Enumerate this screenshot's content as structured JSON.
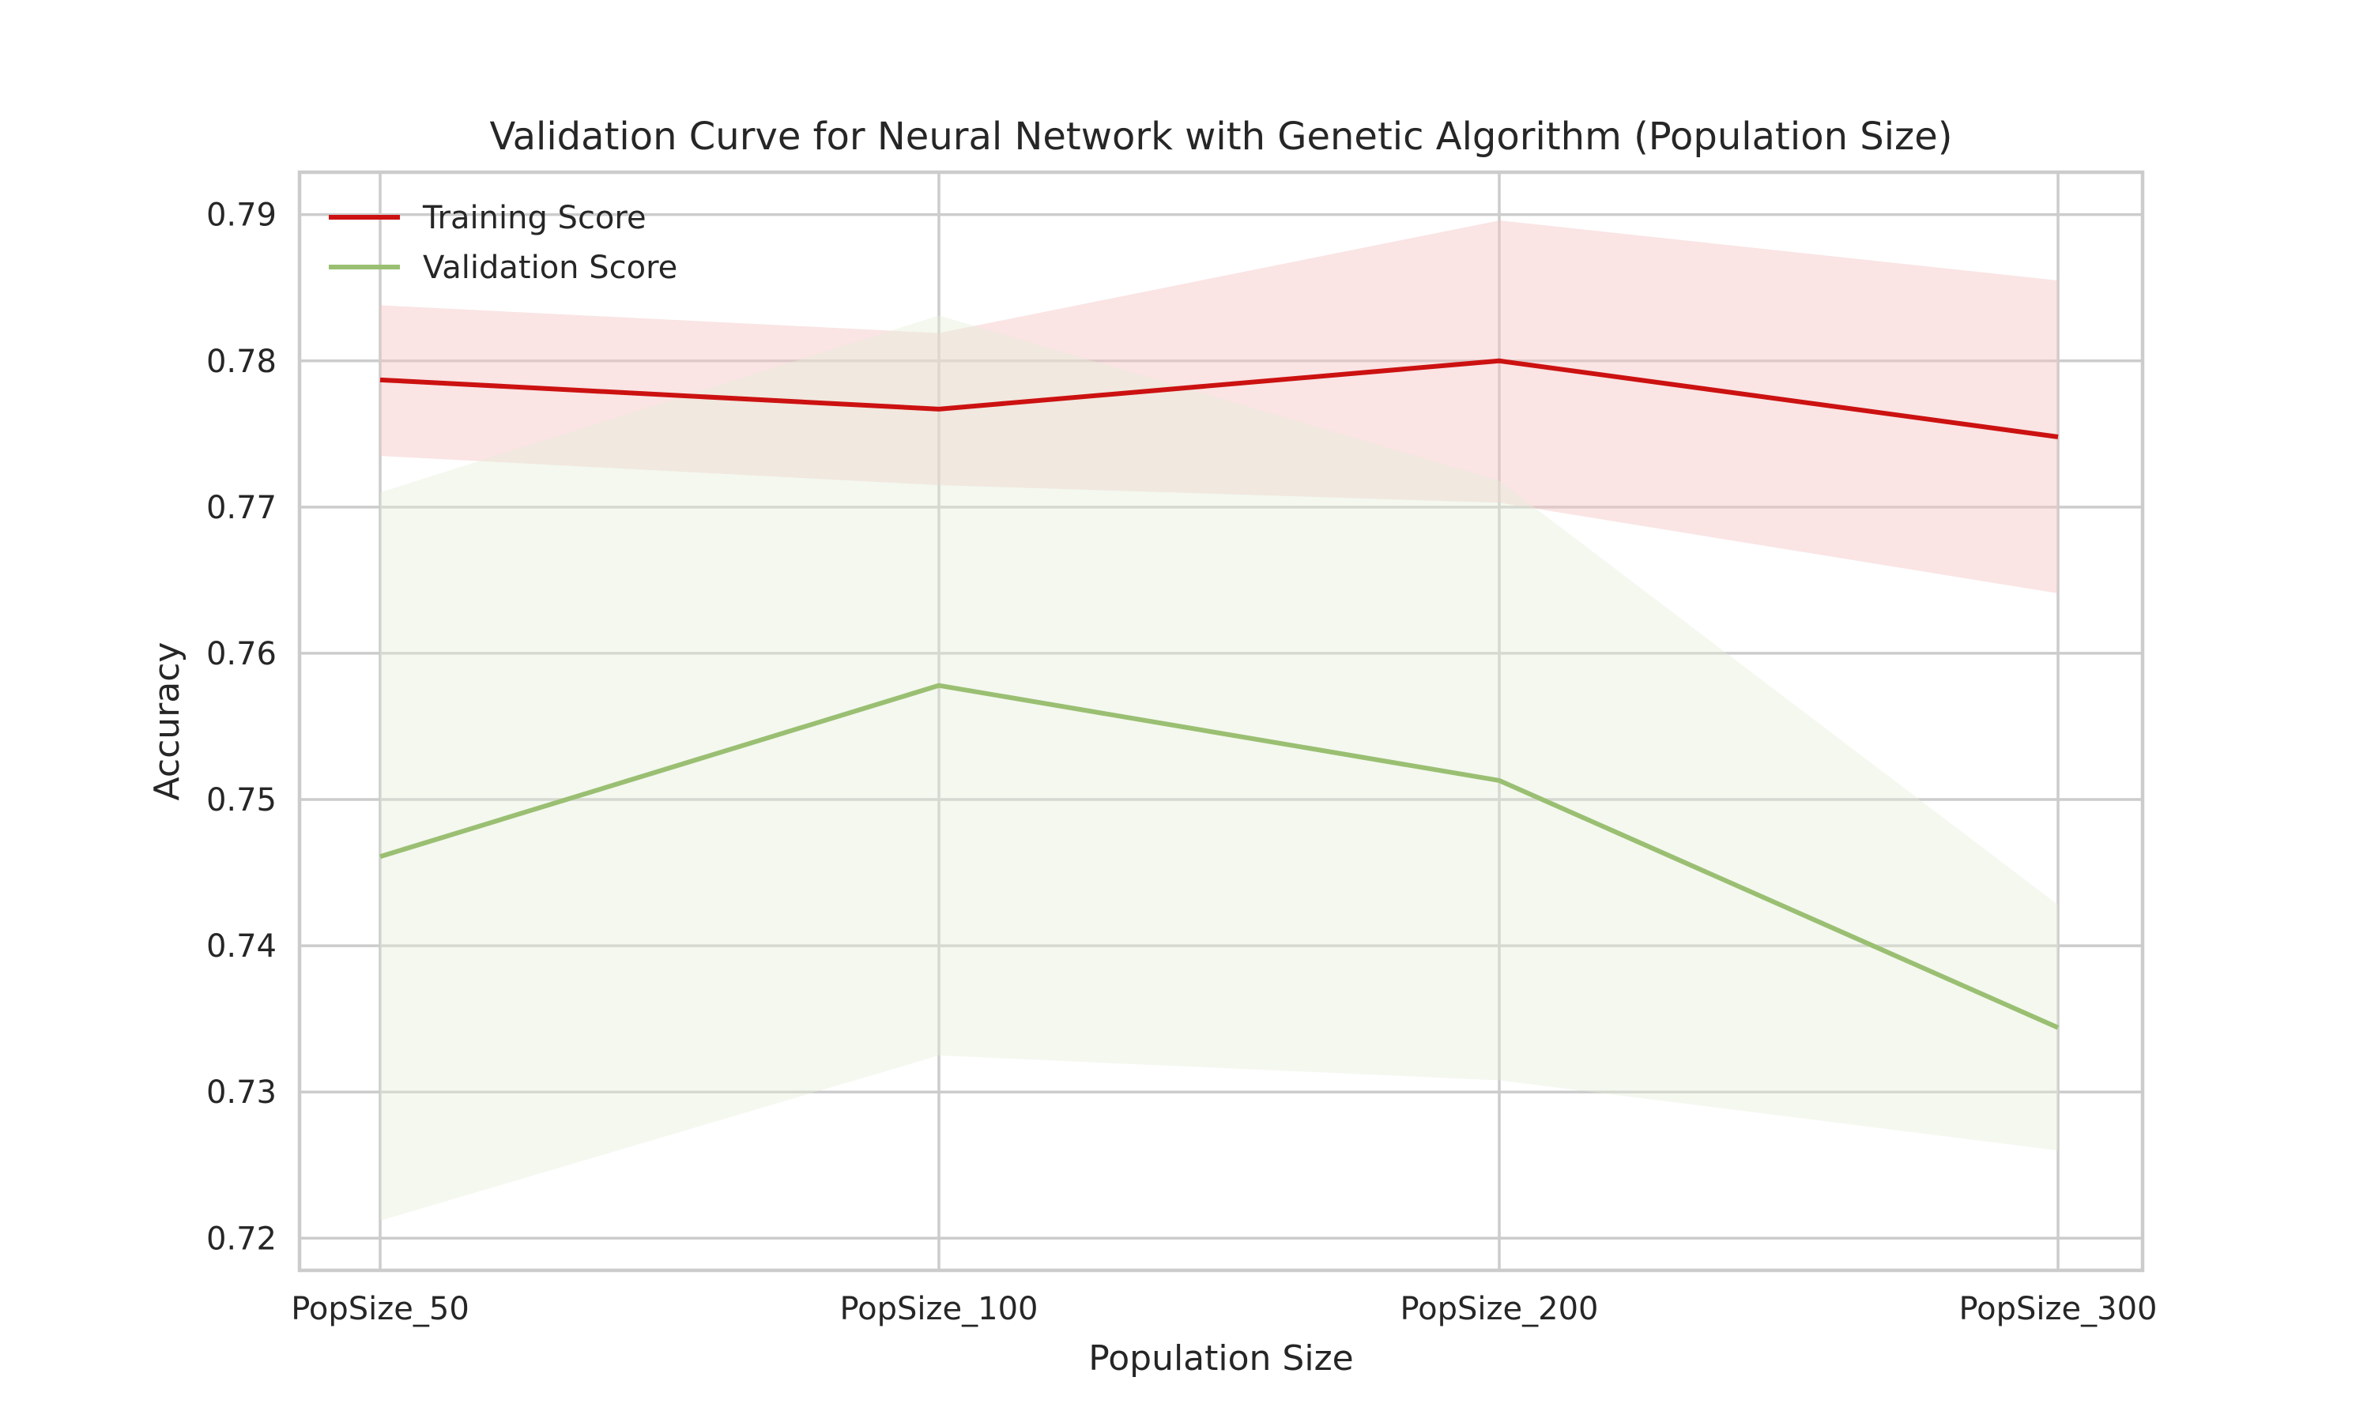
{
  "chart_data": {
    "type": "line",
    "title": "Validation Curve for Neural Network with Genetic Algorithm (Population Size)",
    "xlabel": "Population Size",
    "ylabel": "Accuracy",
    "categories": [
      "PopSize_50",
      "PopSize_100",
      "PopSize_200",
      "PopSize_300"
    ],
    "ylim": [
      0.7178,
      0.7929
    ],
    "yticks": [
      0.72,
      0.73,
      0.74,
      0.75,
      0.76,
      0.77,
      0.78,
      0.79
    ],
    "ytick_labels": [
      "0.72",
      "0.73",
      "0.74",
      "0.75",
      "0.76",
      "0.77",
      "0.78",
      "0.79"
    ],
    "grid": true,
    "legend_position": "top-left",
    "series": [
      {
        "name": "Training Score",
        "color": "#cc1111",
        "band_color": "#f4c4c4",
        "values": [
          0.7787,
          0.7767,
          0.78,
          0.7748
        ],
        "lower": [
          0.7735,
          0.7715,
          0.7703,
          0.7641
        ],
        "upper": [
          0.7838,
          0.7819,
          0.7896,
          0.7855
        ]
      },
      {
        "name": "Validation Score",
        "color": "#9abf72",
        "band_color": "#e4edd6",
        "values": [
          0.7461,
          0.7578,
          0.7513,
          0.7344
        ],
        "lower": [
          0.7212,
          0.7325,
          0.7308,
          0.726
        ],
        "upper": [
          0.771,
          0.7831,
          0.7718,
          0.7428
        ]
      }
    ]
  }
}
